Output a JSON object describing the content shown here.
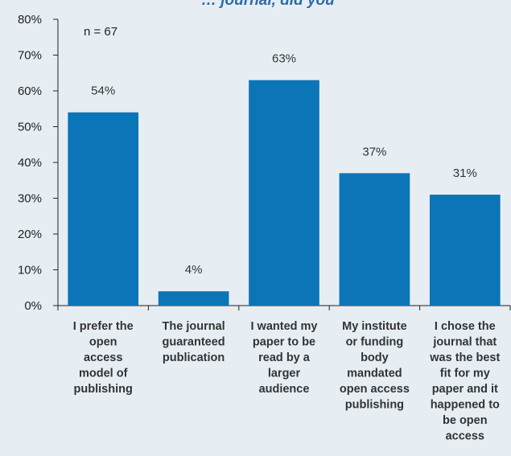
{
  "chart_data": {
    "type": "bar",
    "title": "… journal, did you",
    "annotation": "n = 67",
    "categories": [
      [
        "I prefer the",
        "open",
        "access",
        "model of",
        "publishing"
      ],
      [
        "The journal",
        "guaranteed",
        "publication"
      ],
      [
        "I wanted my",
        "paper to be",
        "read by a",
        "larger",
        "audience"
      ],
      [
        "My institute",
        "or funding",
        "body",
        "mandated",
        "open access",
        "publishing"
      ],
      [
        "I chose the",
        "journal that",
        "was the best",
        "fit for my",
        "paper and it",
        "happened to",
        "be open",
        "access"
      ]
    ],
    "values": [
      54,
      4,
      63,
      37,
      31
    ],
    "data_labels": [
      "54%",
      "4%",
      "63%",
      "37%",
      "31%"
    ],
    "yticks": [
      "0%",
      "10%",
      "20%",
      "30%",
      "40%",
      "50%",
      "60%",
      "70%",
      "80%"
    ],
    "ylim": [
      0,
      80
    ],
    "grid": false,
    "bar_color": "#0b75b7"
  }
}
